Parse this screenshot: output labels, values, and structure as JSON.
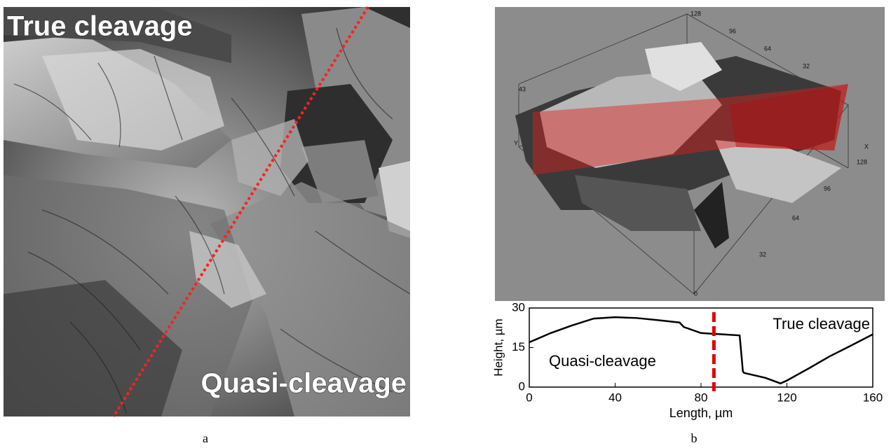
{
  "panel_a": {
    "labels": [
      "True cleavage",
      "Quasi-cleavage"
    ],
    "caption": "a"
  },
  "panel_b": {
    "surface_labels": [
      "128",
      "96",
      "64",
      "32",
      "43",
      "Y",
      "X",
      "128",
      "96",
      "64",
      "32",
      "0"
    ],
    "caption": "b"
  },
  "chart_data": {
    "type": "line",
    "x": [
      0,
      10,
      20,
      30,
      40,
      50,
      60,
      70,
      72,
      80,
      90,
      98,
      99.5,
      100,
      110,
      117,
      120,
      130,
      140,
      150,
      160
    ],
    "series": [
      {
        "color": "#000000",
        "values": [
          17,
          20.5,
          23.4,
          26,
          26.5,
          26.2,
          25.4,
          24.5,
          22.8,
          20.5,
          20,
          19.6,
          6,
          5.4,
          3.5,
          1.4,
          2.5,
          7,
          11.7,
          15.8,
          20
        ]
      }
    ],
    "xlabel": "Length, µm",
    "ylabel": "Height, µm",
    "xlim": [
      0,
      160
    ],
    "ylim": [
      0,
      30
    ],
    "xticks": [
      0,
      40,
      80,
      120,
      160
    ],
    "yticks": [
      0,
      15,
      30
    ],
    "divider_x": 86,
    "divider_color": "#e00000",
    "annotations": [
      "True cleavage",
      "Quasi-cleavage"
    ]
  }
}
